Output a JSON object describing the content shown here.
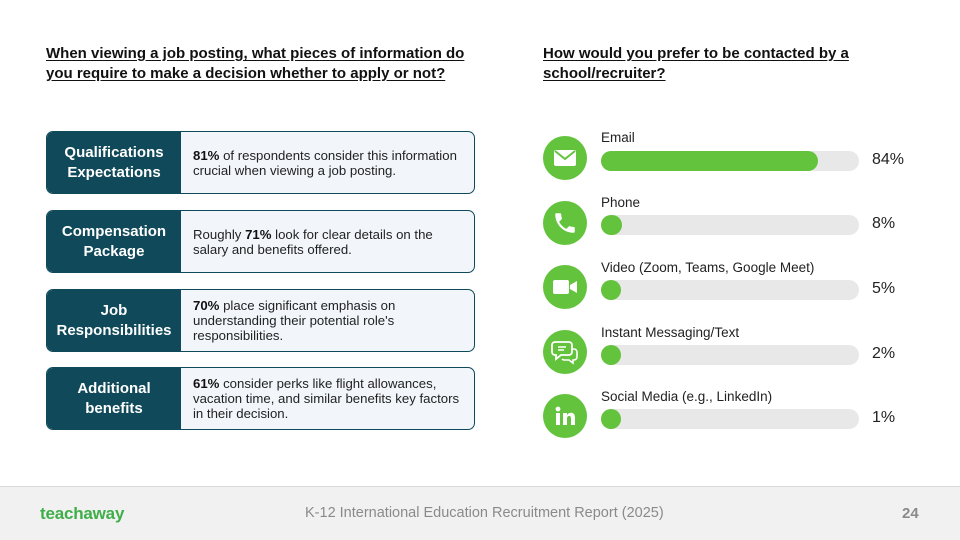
{
  "left": {
    "title": "When viewing a job posting, what pieces of information do you require to make a decision whether to apply or not?",
    "cards": [
      {
        "label": "Qualifications Expectations",
        "pre": "",
        "strong": "81%",
        "post": " of respondents consider this information crucial when viewing a job posting."
      },
      {
        "label": "Compensation Package",
        "pre": "Roughly ",
        "strong": "71%",
        "post": " look for clear details on the salary and benefits offered."
      },
      {
        "label": "Job Responsibilities",
        "pre": "",
        "strong": "70%",
        "post": " place significant emphasis on understanding their potential role's responsibilities."
      },
      {
        "label": "Additional benefits",
        "pre": "",
        "strong": "61%",
        "post": " consider perks like flight allowances, vacation time, and similar benefits key factors in their decision."
      }
    ]
  },
  "right": {
    "title": "How would you prefer to be contacted by a school/recruiter?",
    "channels": [
      {
        "label": "Email",
        "pct": "84%",
        "icon": "email-icon"
      },
      {
        "label": "Phone",
        "pct": "8%",
        "icon": "phone-icon"
      },
      {
        "label": "Video (Zoom, Teams, Google Meet)",
        "pct": "5%",
        "icon": "video-camera-icon"
      },
      {
        "label": "Instant Messaging/Text",
        "pct": "2%",
        "icon": "chat-bubbles-icon"
      },
      {
        "label": "Social Media (e.g., LinkedIn)",
        "pct": "1%",
        "icon": "linkedin-icon"
      }
    ]
  },
  "chart_data": {
    "type": "bar",
    "title": "How would you prefer to be contacted by a school/recruiter?",
    "categories": [
      "Email",
      "Phone",
      "Video (Zoom, Teams, Google Meet)",
      "Instant Messaging/Text",
      "Social Media (e.g., LinkedIn)"
    ],
    "values": [
      84,
      8,
      5,
      2,
      1
    ],
    "xlabel": "",
    "ylabel": "",
    "ylim": [
      0,
      100
    ]
  },
  "footer": {
    "logo": "teachaway",
    "report": "K-12 International Education Recruitment Report (2025)",
    "page": "24"
  },
  "colors": {
    "accent_green": "#63c33c",
    "teal": "#104a5a",
    "track": "#e8e8e8"
  }
}
